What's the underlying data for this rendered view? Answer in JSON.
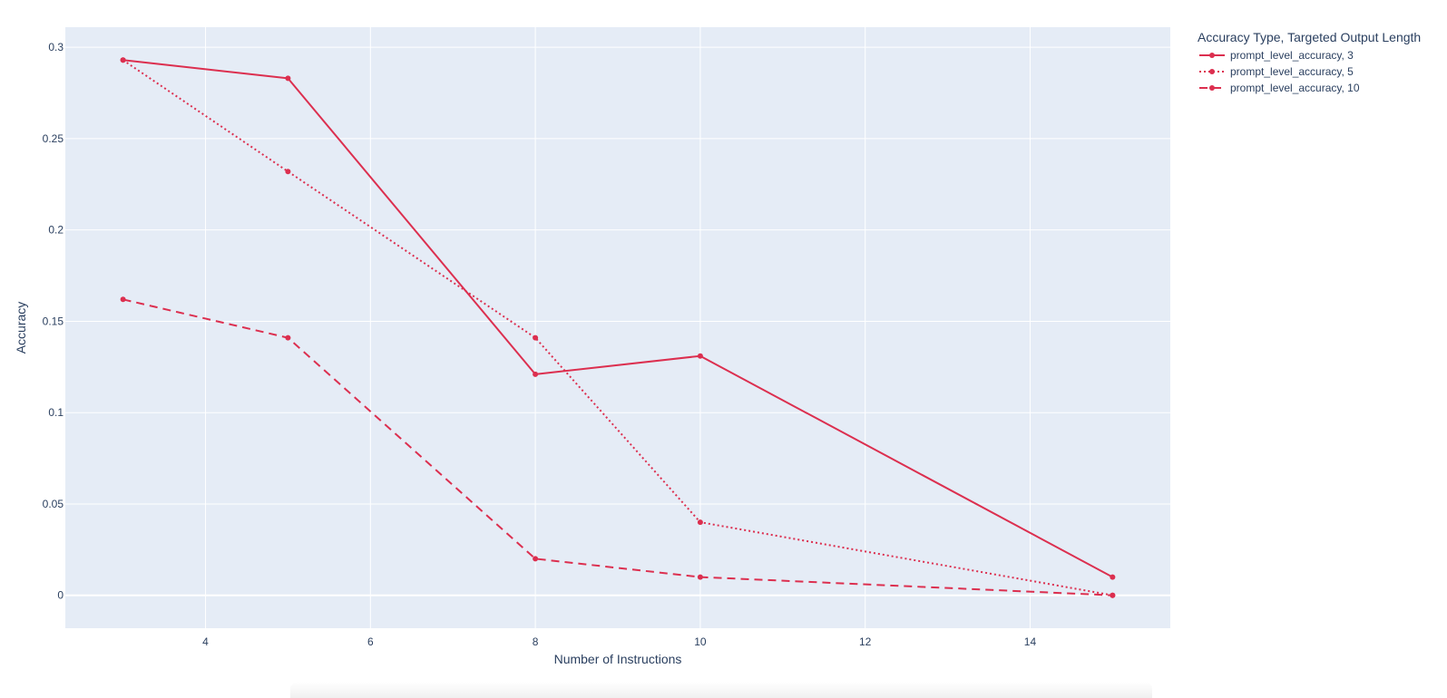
{
  "chart_data": {
    "type": "line",
    "title": "",
    "xlabel": "Number of Instructions",
    "ylabel": "Accuracy",
    "xlim": [
      2.3,
      15.7
    ],
    "ylim": [
      -0.018,
      0.311
    ],
    "x_ticks": [
      4,
      6,
      8,
      10,
      12,
      14
    ],
    "y_ticks": [
      0,
      0.05,
      0.1,
      0.15,
      0.2,
      0.25,
      0.3
    ],
    "grid": true,
    "legend": {
      "title": "Accuracy Type, Targeted Output Length",
      "placement": "top-right outside"
    },
    "colors": {
      "line": "#dc2f4f",
      "plot_bg": "#e5ecf6",
      "grid": "#ffffff",
      "text": "#2a3f5f"
    },
    "series": [
      {
        "name": "prompt_level_accuracy, 3",
        "dash": "solid",
        "x": [
          3,
          5,
          8,
          10,
          15
        ],
        "y": [
          0.293,
          0.283,
          0.121,
          0.131,
          0.01
        ]
      },
      {
        "name": "prompt_level_accuracy, 5",
        "dash": "dot",
        "x": [
          3,
          5,
          8,
          10,
          15
        ],
        "y": [
          0.293,
          0.232,
          0.141,
          0.04,
          0.0
        ]
      },
      {
        "name": "prompt_level_accuracy, 10",
        "dash": "dash",
        "x": [
          3,
          5,
          8,
          10,
          15
        ],
        "y": [
          0.162,
          0.141,
          0.02,
          0.01,
          0.0
        ]
      }
    ]
  }
}
